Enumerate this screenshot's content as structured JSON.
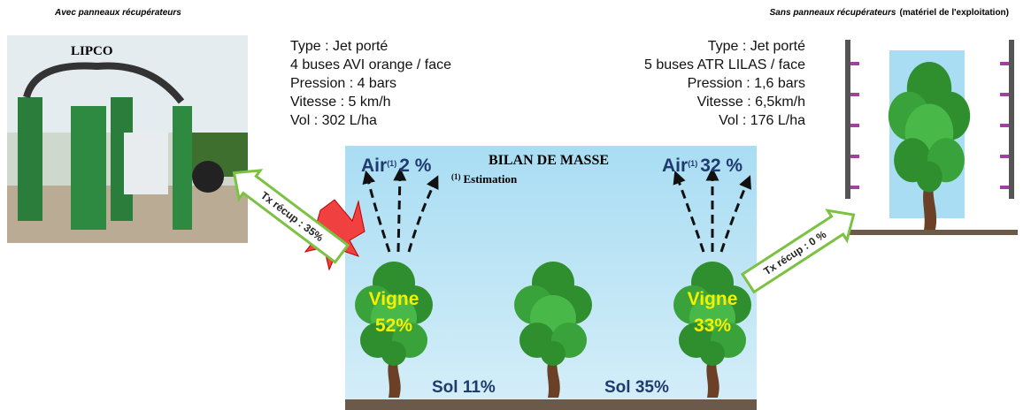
{
  "captions": {
    "left": "Avec panneaux récupérateurs",
    "right": "Sans panneaux récupérateurs",
    "right_bold": "(matériel de l'exploitation)"
  },
  "photo_label": "LIPCO",
  "left_specs": [
    "Type : Jet porté",
    "4 buses AVI orange / face",
    "Pression : 4 bars",
    "Vitesse : 5 km/h",
    "Vol : 302 L/ha"
  ],
  "right_specs": [
    "Type : Jet porté",
    "5 buses ATR LILAS / face",
    "Pression : 1,6 bars",
    "Vitesse : 6,5km/h",
    "Vol : 176 L/ha"
  ],
  "bilan": {
    "title": "BILAN DE MASSE",
    "footnote_mark": "(1)",
    "footnote": "Estimation",
    "left": {
      "air": "Air",
      "air_note": "(1)",
      "air_value": "2 %",
      "vigne": "Vigne",
      "vigne_value": "52%",
      "sol": "Sol 11%"
    },
    "right": {
      "air": "Air",
      "air_note": "(1)",
      "air_value": "32 %",
      "vigne": "Vigne",
      "vigne_value": "33%",
      "sol": "Sol 35%"
    }
  },
  "arrows": {
    "left": "Tx récup : 35%",
    "right": "Tx récup : 0 %"
  }
}
